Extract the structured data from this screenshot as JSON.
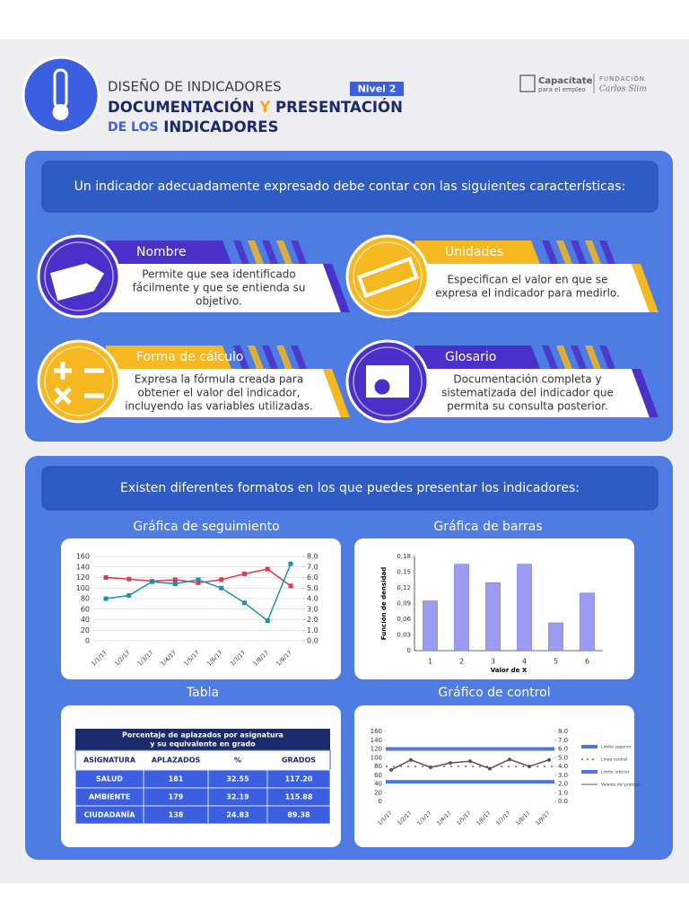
{
  "header": {
    "subtitle": "DISEÑO DE INDICADORES",
    "level": "Nivel 2",
    "title_a": "DOCUMENTACIÓN",
    "title_and": "Y",
    "title_b": "PRESENTACIÓN",
    "title_c": "DE LOS",
    "title_d": "INDICADORES",
    "logo_1": "Capacítate",
    "logo_1_sub": "para el empleo",
    "logo_2": "FUNDACIÓN",
    "logo_2_sub": "Carlos Slim"
  },
  "section1": {
    "heading": "Un indicador adecuadamente expresado debe contar con las siguientes características:",
    "items": [
      {
        "title": "Nombre",
        "text": [
          "Permite que sea identificado",
          "fácilmente y que se entienda su",
          "objetivo."
        ]
      },
      {
        "title": "Unidades",
        "text": [
          "Especifican el valor en que se",
          "expresa el indicador para medirlo."
        ]
      },
      {
        "title": "Forma de cálculo",
        "text": [
          "Expresa la fórmula creada para",
          "obtener el valor del indicador,",
          "incluyendo las variables utilizadas."
        ]
      },
      {
        "title": "Glosario",
        "text": [
          "Documentación completa y",
          "sistematizada del indicador que",
          "permita su consulta posterior."
        ]
      }
    ]
  },
  "section2": {
    "heading": "Existen diferentes formatos en los que puedes presentar los indicadores:",
    "line_chart": {
      "type": "line",
      "title": "Gráfica de seguimiento",
      "categories": [
        "1/1/17",
        "1/2/17",
        "1/3/17",
        "1/4/17",
        "1/5/17",
        "1/6/17",
        "1/7/17",
        "1/8/17",
        "1/9/17"
      ],
      "series": [
        {
          "color": "#e8344e",
          "values": [
            120,
            117,
            113,
            116,
            110,
            116,
            127,
            136,
            104
          ]
        },
        {
          "color": "#1f8fae",
          "axis": "y2",
          "values": [
            4.0,
            4.3,
            5.6,
            5.4,
            5.8,
            5.0,
            3.6,
            1.9,
            7.3
          ]
        }
      ],
      "ylim": [
        0,
        160
      ],
      "yticks": [
        0,
        20,
        40,
        60,
        80,
        100,
        120,
        140,
        160
      ],
      "y2lim": [
        0,
        8
      ],
      "y2ticks": [
        {
          "value": 0,
          "label": "0.0"
        },
        {
          "value": 1,
          "label": "1.0"
        },
        {
          "value": 2,
          "label": "2.0"
        },
        {
          "value": 3,
          "label": "3.0"
        },
        {
          "value": 4,
          "label": "4.0"
        },
        {
          "value": 5,
          "label": "5.0"
        },
        {
          "value": 6,
          "label": "6.0"
        },
        {
          "value": 7,
          "label": "7.0"
        },
        {
          "value": 8,
          "label": "8.0"
        }
      ],
      "grid": true
    },
    "bar_chart": {
      "type": "bar",
      "title": "Gráfica de barras",
      "y_label": "Función de densidad",
      "x_label": "Valor de X",
      "categories": [
        "1",
        "2",
        "3",
        "4",
        "5",
        "6"
      ],
      "values": [
        0.095,
        0.165,
        0.13,
        0.165,
        0.053,
        0.11
      ],
      "color": "#9b9bf2",
      "ylim": [
        0,
        0.18
      ],
      "yticks": [
        0,
        {
          "value": 0.03,
          "label": "0,03"
        },
        {
          "value": 0.06,
          "label": "0,06"
        },
        {
          "value": 0.09,
          "label": "0,09"
        },
        {
          "value": 0.12,
          "label": "0,12"
        },
        {
          "value": 0.15,
          "label": "0,15"
        },
        {
          "value": 0.18,
          "label": "0,18"
        }
      ]
    },
    "table": {
      "title": "Tabla",
      "caption": [
        "Porcentaje de aplazados por asignatura",
        "y su equivalente en grado"
      ],
      "columns": [
        "ASIGNATURA",
        "APLAZADOS",
        "%",
        "GRADOS"
      ],
      "rows": [
        [
          "SALUD",
          "181",
          "32.55",
          "117.20"
        ],
        [
          "AMBIENTE",
          "179",
          "32.19",
          "115.88"
        ],
        [
          "CIUDADANÍA",
          "138",
          "24.83",
          "89.38"
        ]
      ]
    },
    "control_chart": {
      "type": "line",
      "title": "Gráfico de control",
      "categories": [
        "1/1/17",
        "1/2/17",
        "1/3/17",
        "1/4/17",
        "1/5/17",
        "1/6/17",
        "1/7/17",
        "1/8/17",
        "1/9/17"
      ],
      "limits": [
        {
          "name": "Límite superior",
          "color": "#4a78e0",
          "value": 120
        },
        {
          "name": "Línea central",
          "color": "#6b6b3a",
          "value": 80
        },
        {
          "name": "Límite inferior",
          "color": "#4a78e0",
          "value": 45
        }
      ],
      "series": [
        {
          "name": "Valores del proceso",
          "color": "#555555",
          "values": [
            72,
            95,
            78,
            88,
            92,
            75,
            96,
            80,
            95
          ]
        }
      ],
      "ylim": [
        0,
        160
      ],
      "yticks": [
        0,
        20,
        40,
        60,
        80,
        100,
        120,
        140,
        160
      ],
      "y2lim": [
        0,
        8
      ],
      "y2ticks": [
        {
          "value": 0,
          "label": "0.0"
        },
        {
          "value": 1,
          "label": "1.0"
        },
        {
          "value": 2,
          "label": "2.0"
        },
        {
          "value": 3,
          "label": "3.0"
        },
        {
          "value": 4,
          "label": "4.0"
        },
        {
          "value": 5,
          "label": "5.0"
        },
        {
          "value": 6,
          "label": "6.0"
        },
        {
          "value": 7,
          "label": "7.0"
        },
        {
          "value": 8,
          "label": "8.0"
        }
      ]
    }
  }
}
